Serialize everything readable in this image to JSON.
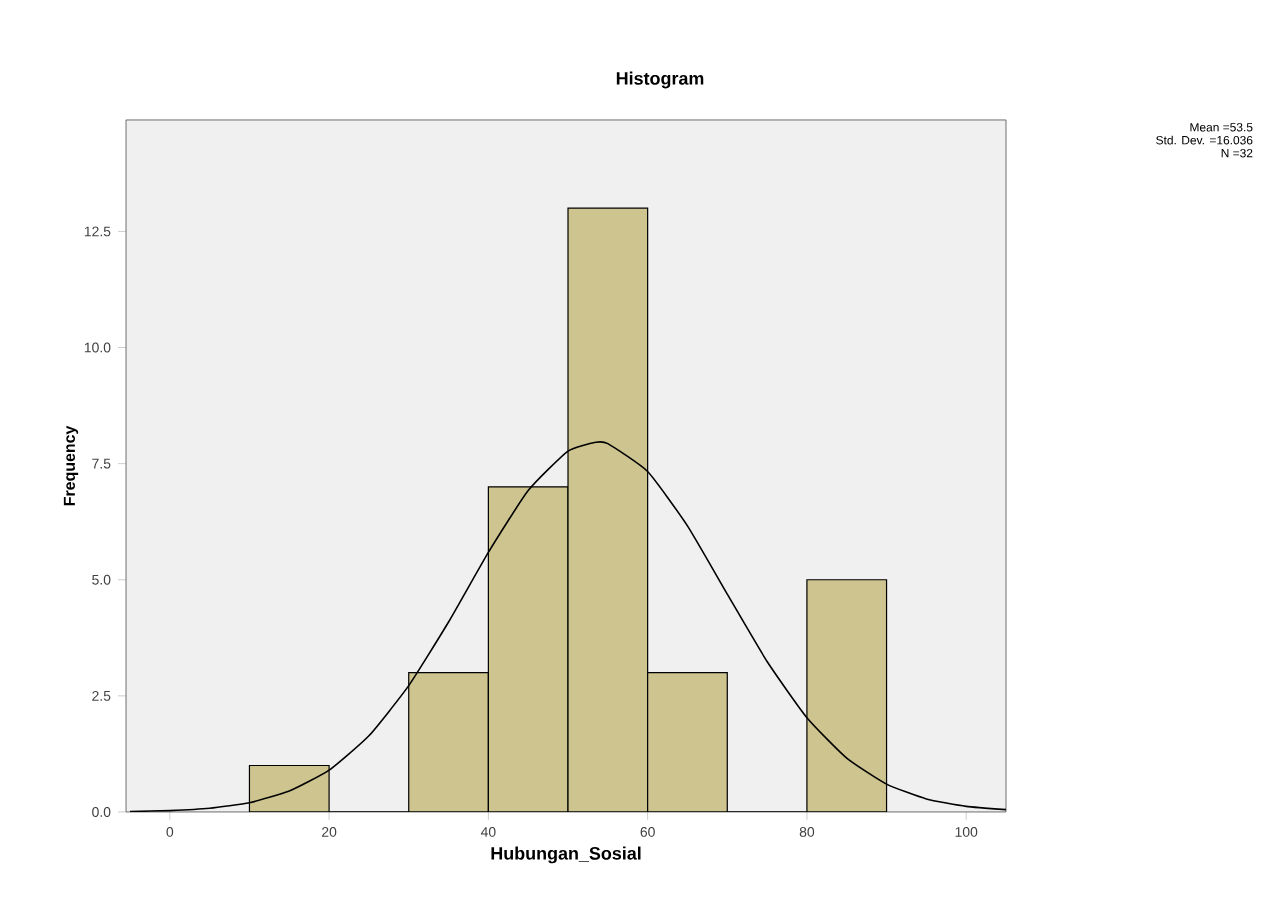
{
  "chart_data": {
    "type": "histogram",
    "title": "Histogram",
    "xlabel": "Hubungan_Sosial",
    "ylabel": "Frequency",
    "bins": [
      10,
      20,
      30,
      40,
      50,
      60,
      70,
      80,
      90
    ],
    "values": [
      1,
      0,
      3,
      7,
      13,
      3,
      0,
      5
    ],
    "color": "#cdc48f",
    "series": [
      {
        "type": "line",
        "color": "#000000",
        "x": [
          -5,
          0,
          5,
          10,
          15,
          20,
          25,
          30,
          35,
          40,
          45,
          50,
          53.5,
          55,
          60,
          65,
          70,
          75,
          80,
          85,
          90,
          95,
          100,
          105
        ],
        "values": [
          0.01,
          0.03,
          0.08,
          0.2,
          0.45,
          0.9,
          1.64,
          2.72,
          4.09,
          5.59,
          6.92,
          7.77,
          7.96,
          7.93,
          7.33,
          6.16,
          4.69,
          3.24,
          2.03,
          1.16,
          0.6,
          0.28,
          0.12,
          0.05
        ]
      }
    ],
    "xlim": [
      -5.5,
      105
    ],
    "ylim": [
      0,
      14.9
    ],
    "xticks": [
      0,
      20,
      40,
      60,
      80,
      100
    ],
    "yticks": [
      {
        "value": 0,
        "label": "0.0"
      },
      {
        "value": 2.5,
        "label": "2.5"
      },
      {
        "value": 5,
        "label": "5.0"
      },
      {
        "value": 7.5,
        "label": "7.5"
      },
      {
        "value": 10,
        "label": "10.0"
      },
      {
        "value": 12.5,
        "label": "12.5"
      }
    ],
    "grid": false,
    "annotations": [
      "Mean =53.5",
      "Std. Dev. =16.036",
      "N =32"
    ]
  }
}
